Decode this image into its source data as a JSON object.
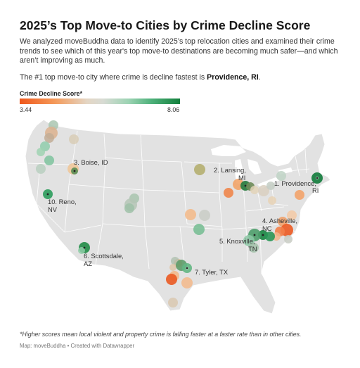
{
  "title": "2025’s Top Move-to Cities by Crime Decline Score",
  "description": "We analyzed moveBuddha data to identify 2025’s top relocation cities and examined their crime trends to see which of this year's top move-to destinations are becoming much safer—and which aren’t improving as much.",
  "highlight": {
    "prefix": "The #1 top move-to city where crime is decline fastest is ",
    "city": "Providence, RI",
    "suffix": "."
  },
  "legend": {
    "title": "Crime Decline Score*",
    "min": "3.44",
    "max": "8.06",
    "colors": [
      "#f0581c",
      "#e4d6c4",
      "#13803d"
    ]
  },
  "labels": [
    {
      "id": "providence",
      "line1": "1. Providence,",
      "line2": "RI"
    },
    {
      "id": "lansing",
      "line1": "2. Lansing,",
      "line2": "MI"
    },
    {
      "id": "boise",
      "line1": "3. Boise, ID",
      "line2": ""
    },
    {
      "id": "asheville",
      "line1": "4. Asheville,",
      "line2": "NC"
    },
    {
      "id": "knoxville",
      "line1": "5. Knoxville,",
      "line2": "TN"
    },
    {
      "id": "scottsdale",
      "line1": "6. Scottsdale,",
      "line2": "AZ"
    },
    {
      "id": "tyler",
      "line1": "7. Tyler, TX",
      "line2": ""
    },
    {
      "id": "reno",
      "line1": "10. Reno,",
      "line2": "NV"
    }
  ],
  "footnote": "*Higher scores mean local violent and property crime is falling faster at a faster rate than in other cities.",
  "source": "Map: moveBuddha • Created with Datawrapper"
}
